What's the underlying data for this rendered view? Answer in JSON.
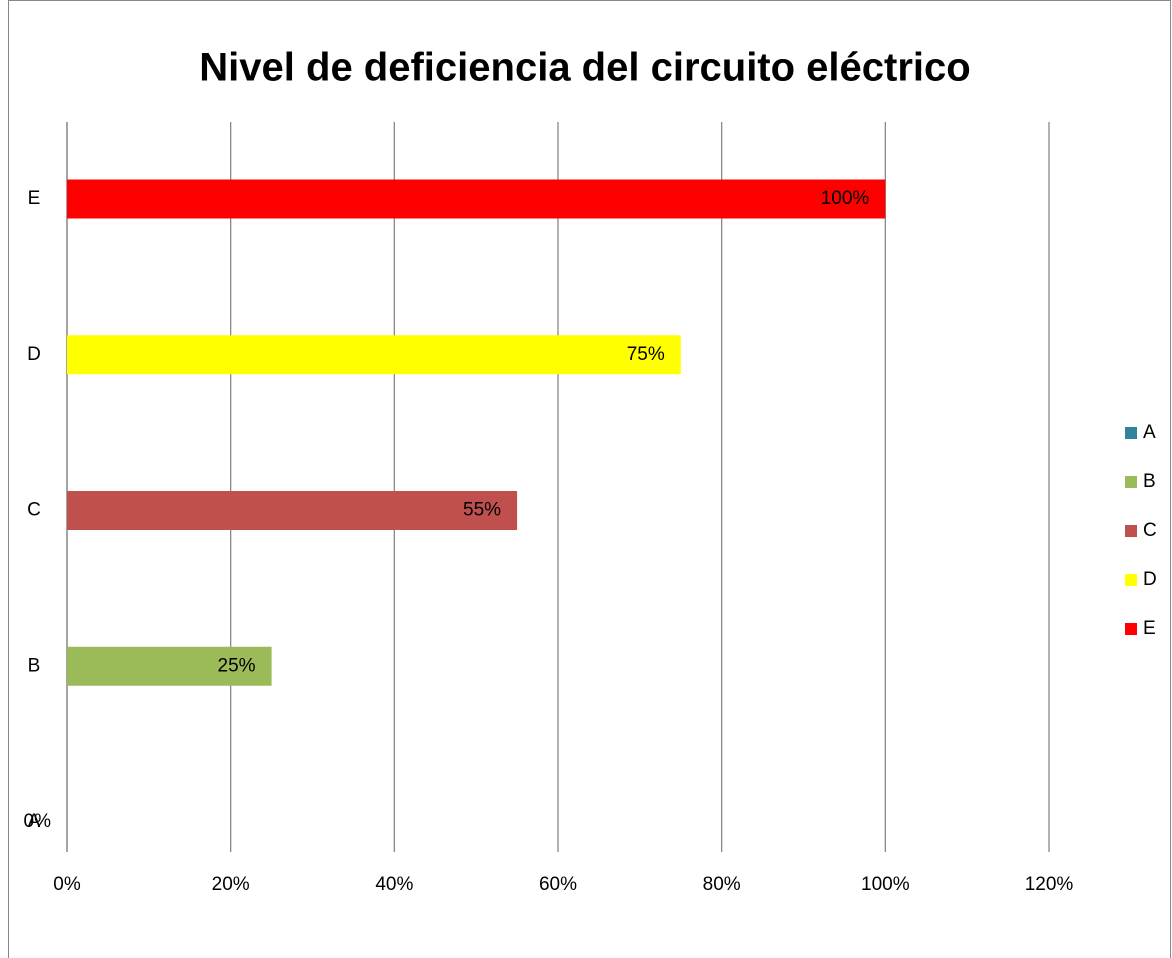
{
  "chart_data": {
    "type": "hbar",
    "title": "Nivel de deficiencia del circuito eléctrico",
    "categories": [
      "A",
      "B",
      "C",
      "D",
      "E"
    ],
    "values": [
      0,
      25,
      55,
      75,
      100
    ],
    "value_labels": [
      "0%",
      "25%",
      "55%",
      "75%",
      "100%"
    ],
    "colors": [
      "#31849b",
      "#9bbb59",
      "#c0504d",
      "#ffff00",
      "#ff0000"
    ],
    "xlim": [
      0,
      120
    ],
    "xticks": [
      {
        "value": 0,
        "label": "0%"
      },
      {
        "value": 20,
        "label": "20%"
      },
      {
        "value": 40,
        "label": "40%"
      },
      {
        "value": 60,
        "label": "60%"
      },
      {
        "value": 80,
        "label": "80%"
      },
      {
        "value": 100,
        "label": "100%"
      },
      {
        "value": 120,
        "label": "120%"
      }
    ],
    "grid": true,
    "legend": "right"
  }
}
